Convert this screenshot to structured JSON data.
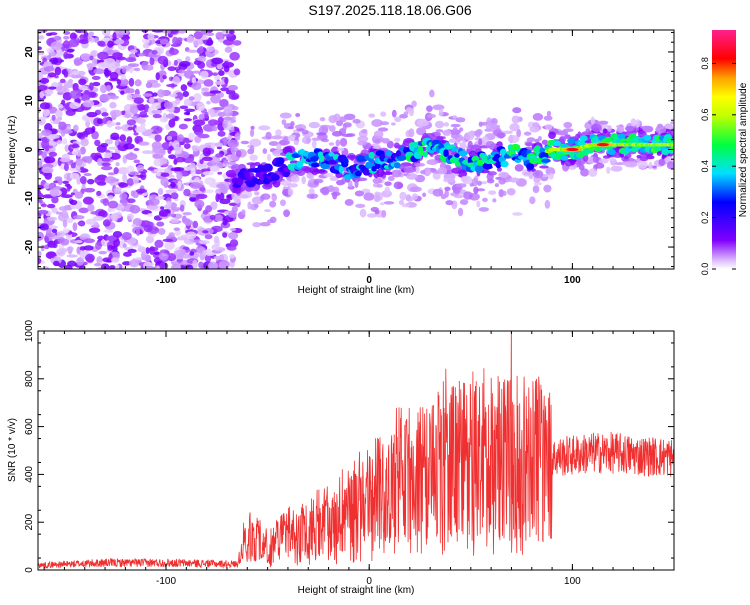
{
  "title": "S197.2025.118.18.06.G06",
  "chart_data": [
    {
      "type": "heatmap",
      "xlabel": "Height of straight line (km)",
      "ylabel": "Frequency (Hz)",
      "xlim": [
        -163,
        150
      ],
      "ylim": [
        -24.5,
        24.5
      ],
      "xticks": [
        -100,
        0,
        100
      ],
      "yticks": [
        -20,
        -10,
        0,
        10,
        20
      ],
      "colorbar": {
        "label": "Normalized spectral amplitude",
        "range": [
          0,
          0.93
        ],
        "ticks": [
          "0.0",
          "0.2",
          "0.4",
          "0.6",
          "0.8"
        ],
        "colormap": "rainbow (purple to red)"
      },
      "ridge": {
        "description_points": [
          {
            "x": -65,
            "y": -6
          },
          {
            "x": -50,
            "y": -5
          },
          {
            "x": -35,
            "y": -2
          },
          {
            "x": -20,
            "y": -2
          },
          {
            "x": -10,
            "y": -4
          },
          {
            "x": 0,
            "y": -3
          },
          {
            "x": 10,
            "y": -2
          },
          {
            "x": 20,
            "y": -1
          },
          {
            "x": 30,
            "y": 1
          },
          {
            "x": 40,
            "y": -1
          },
          {
            "x": 50,
            "y": -3
          },
          {
            "x": 60,
            "y": -2
          },
          {
            "x": 70,
            "y": -1
          },
          {
            "x": 80,
            "y": -2
          },
          {
            "x": 90,
            "y": 0
          },
          {
            "x": 100,
            "y": 0
          },
          {
            "x": 110,
            "y": 1
          },
          {
            "x": 120,
            "y": 1
          },
          {
            "x": 130,
            "y": 1
          },
          {
            "x": 150,
            "y": 1
          }
        ],
        "peak_amplitude_regions": [
          {
            "x": 100,
            "y": 0,
            "amp": 0.9
          },
          {
            "x": 115,
            "y": 1,
            "amp": 0.9
          }
        ]
      }
    },
    {
      "type": "line",
      "xlabel": "Height of straight line (km)",
      "ylabel": "SNR (10 * v/v)",
      "xlim": [
        -163,
        150
      ],
      "ylim": [
        0,
        1000
      ],
      "xticks": [
        -100,
        0,
        100
      ],
      "yticks": [
        0,
        200,
        400,
        600,
        800,
        1000
      ],
      "series": [
        {
          "color": "#f03030",
          "envelope": [
            {
              "x": -163,
              "y": 20
            },
            {
              "x": -130,
              "y": 30
            },
            {
              "x": -100,
              "y": 30
            },
            {
              "x": -65,
              "y": 25
            },
            {
              "x": -60,
              "y": 150
            },
            {
              "x": -50,
              "y": 100
            },
            {
              "x": -40,
              "y": 150
            },
            {
              "x": -30,
              "y": 180
            },
            {
              "x": -20,
              "y": 200
            },
            {
              "x": -10,
              "y": 250
            },
            {
              "x": 0,
              "y": 300
            },
            {
              "x": 10,
              "y": 350
            },
            {
              "x": 20,
              "y": 400
            },
            {
              "x": 30,
              "y": 430
            },
            {
              "x": 40,
              "y": 450
            },
            {
              "x": 50,
              "y": 460
            },
            {
              "x": 60,
              "y": 470
            },
            {
              "x": 70,
              "y": 470
            },
            {
              "x": 80,
              "y": 460
            },
            {
              "x": 90,
              "y": 470
            },
            {
              "x": 100,
              "y": 480
            },
            {
              "x": 110,
              "y": 490
            },
            {
              "x": 120,
              "y": 490
            },
            {
              "x": 130,
              "y": 480
            },
            {
              "x": 150,
              "y": 470
            }
          ],
          "max_point": {
            "x": 70,
            "y": 1000
          }
        }
      ]
    }
  ]
}
